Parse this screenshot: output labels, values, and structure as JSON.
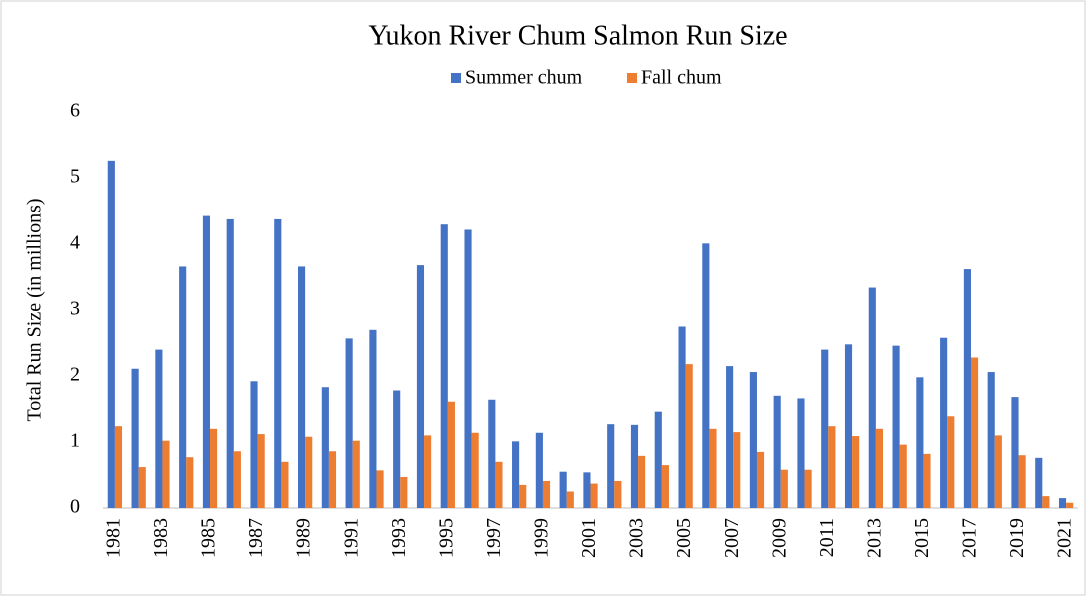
{
  "chart_data": {
    "type": "bar",
    "title": "Yukon River Chum Salmon Run Size",
    "y_label": "Total Run Size (in millions)",
    "categories": [
      "1981",
      null,
      "1983",
      null,
      "1985",
      null,
      "1987",
      null,
      "1989",
      null,
      "1991",
      null,
      "1993",
      null,
      "1995",
      null,
      "1997",
      null,
      "1999",
      null,
      "2001",
      null,
      "2003",
      null,
      "2005",
      null,
      "2007",
      null,
      "2009",
      null,
      "2011",
      null,
      "2013",
      null,
      "2015",
      null,
      "2017",
      null,
      "2019",
      null,
      "2021"
    ],
    "series": [
      {
        "name": "Summer chum",
        "color": "#4472c4",
        "values": [
          5.26,
          2.11,
          2.4,
          3.66,
          4.43,
          4.38,
          1.92,
          4.38,
          3.66,
          1.83,
          2.57,
          2.7,
          1.78,
          3.68,
          4.3,
          4.22,
          1.64,
          1.01,
          1.14,
          0.55,
          0.54,
          1.27,
          1.26,
          1.46,
          2.75,
          4.01,
          2.15,
          2.06,
          1.7,
          1.66,
          2.4,
          2.48,
          3.34,
          2.46,
          1.98,
          2.58,
          3.62,
          2.06,
          1.68,
          0.76,
          0.15
        ]
      },
      {
        "name": "Fall chum",
        "color": "#ed7d31",
        "values": [
          1.24,
          0.62,
          1.02,
          0.77,
          1.2,
          0.86,
          1.12,
          0.7,
          1.08,
          0.86,
          1.02,
          0.57,
          0.47,
          1.1,
          1.61,
          1.14,
          0.7,
          0.35,
          0.41,
          0.25,
          0.37,
          0.41,
          0.79,
          0.65,
          2.18,
          1.2,
          1.15,
          0.85,
          0.58,
          0.58,
          1.24,
          1.09,
          1.2,
          0.96,
          0.82,
          1.39,
          2.28,
          1.1,
          0.8,
          0.18,
          0.08
        ]
      }
    ],
    "ylim": [
      0,
      6
    ],
    "yticks": [
      0,
      1,
      2,
      3,
      4,
      5,
      6
    ],
    "grid": false,
    "legend": "top"
  }
}
